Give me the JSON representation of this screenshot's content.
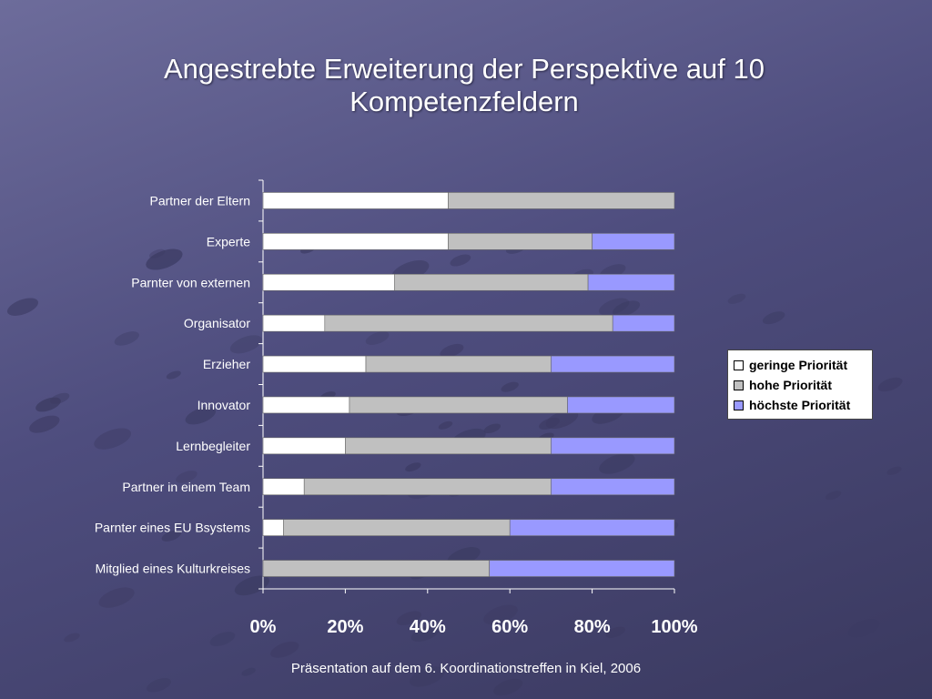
{
  "title": "Angestrebte Erweiterung der Perspektive auf 10 Kompetenzfeldern",
  "footer": "Präsentation auf dem 6. Koordinationstreffen in Kiel, 2006",
  "colors": {
    "background": "#55547f",
    "geringe": "#ffffff",
    "hohe": "#c0c0c0",
    "hoechste": "#9999ff"
  },
  "chart_data": {
    "type": "bar",
    "orientation": "horizontal",
    "stacked": "percent",
    "categories": [
      "Partner der Eltern",
      "Experte",
      "Parnter von externen",
      "Organisator",
      "Erzieher",
      "Innovator",
      "Lernbegleiter",
      "Partner in einem Team",
      "Parnter eines EU Bsystems",
      "Mitglied eines Kulturkreises"
    ],
    "series": [
      {
        "name": "geringe Priorität",
        "color": "#ffffff",
        "values": [
          45,
          45,
          32,
          15,
          25,
          21,
          20,
          10,
          5,
          0
        ]
      },
      {
        "name": "hohe Priorität",
        "color": "#c0c0c0",
        "values": [
          55,
          35,
          47,
          70,
          45,
          53,
          50,
          60,
          55,
          55
        ]
      },
      {
        "name": "höchste Priorität",
        "color": "#9999ff",
        "values": [
          0,
          20,
          21,
          15,
          30,
          26,
          30,
          30,
          40,
          45
        ]
      }
    ],
    "xticks": [
      "0%",
      "20%",
      "40%",
      "60%",
      "80%",
      "100%"
    ],
    "xlim": [
      0,
      100
    ],
    "grid": false,
    "legend_position": "right"
  }
}
